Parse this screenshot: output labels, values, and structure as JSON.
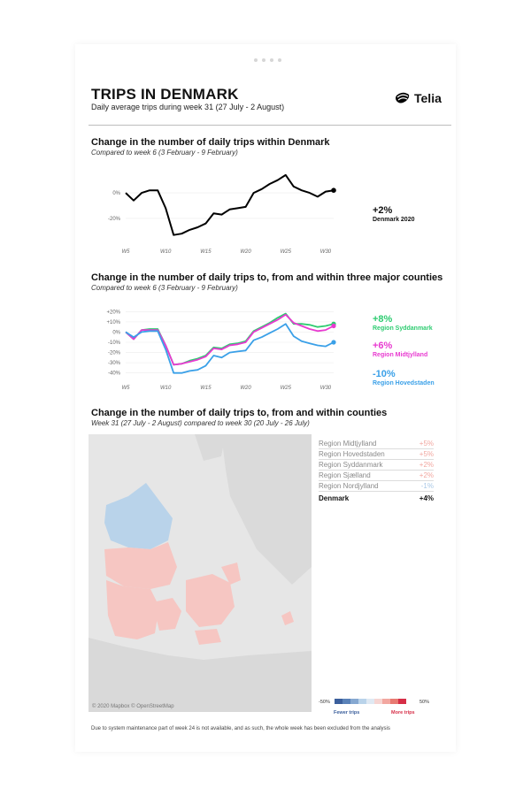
{
  "header": {
    "title": "TRIPS IN DENMARK",
    "subtitle": "Daily average trips during week 31 (27 July - 2 August)",
    "logo_text": "Telia"
  },
  "colors": {
    "denmark": "#000000",
    "syddanmark": "#2ecc71",
    "midtjylland": "#e83ad0",
    "hovedstaden": "#3aa0e8",
    "fewer": "#3b5f9c",
    "more": "#d62e47"
  },
  "section1": {
    "title": "Change in the number of daily trips within Denmark",
    "subtitle": "Compared to week 6 (3 February - 9 February)",
    "value_label": "+2%",
    "series_label": "Denmark 2020"
  },
  "section2": {
    "title": "Change in the number of daily trips to, from and within three major counties",
    "subtitle": "Compared to week 6 (3 February - 9 February)",
    "labels": [
      {
        "value": "+8%",
        "name": "Region Syddanmark"
      },
      {
        "value": "+6%",
        "name": "Region Midtjylland"
      },
      {
        "value": "-10%",
        "name": "Region Hovedstaden"
      }
    ]
  },
  "section3": {
    "title": "Change in the number of daily trips to, from and within counties",
    "subtitle": "Week 31 (27 July - 2 August) compared to week 30 (20 July - 26 July)",
    "map_credit": "© 2020 Mapbox © OpenStreetMap",
    "regions": [
      {
        "name": "Region Midtjylland",
        "value": "+5%"
      },
      {
        "name": "Region Hovedstaden",
        "value": "+5%"
      },
      {
        "name": "Region Syddanmark",
        "value": "+2%"
      },
      {
        "name": "Region Sjælland",
        "value": "+2%"
      },
      {
        "name": "Region Nordjylland",
        "value": "-1%"
      }
    ],
    "total": {
      "name": "Denmark",
      "value": "+4%"
    },
    "legend": {
      "min": "-50%",
      "max": "50%",
      "fewer": "Fewer trips",
      "more": "More trips"
    }
  },
  "footer": "Due to system maintenance part of week 24 is not available, and as such, the whole week has been excluded from the analysis",
  "chart_data": [
    {
      "type": "line",
      "title": "Change in the number of daily trips within Denmark",
      "x": [
        5,
        6,
        7,
        8,
        9,
        10,
        11,
        12,
        13,
        14,
        15,
        16,
        17,
        18,
        19,
        20,
        21,
        22,
        23,
        24,
        25,
        26,
        27,
        28,
        29,
        30,
        31
      ],
      "xticks": [
        5,
        10,
        15,
        20,
        25,
        30
      ],
      "xtick_labels": [
        "W5",
        "W10",
        "W15",
        "W20",
        "W25",
        "W30"
      ],
      "yticks": [
        0,
        -20
      ],
      "ytick_labels": [
        "0%",
        "-20%"
      ],
      "ylim": [
        -36,
        16
      ],
      "series": [
        {
          "name": "Denmark 2020",
          "values": [
            0,
            -6,
            0,
            2,
            2,
            -12,
            -33,
            -32,
            -29,
            -27,
            -24,
            -16,
            -17,
            -13,
            -12,
            -11,
            0,
            3,
            7,
            10,
            14,
            5,
            2,
            0,
            -3,
            1,
            2
          ]
        }
      ],
      "grid": true
    },
    {
      "type": "line",
      "title": "Change in the number of daily trips to, from and within three major counties",
      "x": [
        5,
        6,
        7,
        8,
        9,
        10,
        11,
        12,
        13,
        14,
        15,
        16,
        17,
        18,
        19,
        20,
        21,
        22,
        23,
        24,
        25,
        26,
        27,
        28,
        29,
        30,
        31
      ],
      "xticks": [
        5,
        10,
        15,
        20,
        25,
        30
      ],
      "xtick_labels": [
        "W5",
        "W10",
        "W15",
        "W20",
        "W25",
        "W30"
      ],
      "yticks": [
        20,
        10,
        0,
        -10,
        -20,
        -30,
        -40
      ],
      "ytick_labels": [
        "+20%",
        "+10%",
        "0%",
        "-10%",
        "-20%",
        "-30%",
        "-40%"
      ],
      "ylim": [
        -42,
        22
      ],
      "series": [
        {
          "name": "Region Syddanmark",
          "values": [
            0,
            -7,
            2,
            3,
            3,
            -13,
            -32,
            -31,
            -28,
            -26,
            -23,
            -15,
            -16,
            -12,
            -11,
            -9,
            1,
            5,
            9,
            14,
            18,
            8,
            8,
            7,
            5,
            6,
            8
          ]
        },
        {
          "name": "Region Midtjylland",
          "values": [
            0,
            -7,
            2,
            2,
            2,
            -13,
            -32,
            -31,
            -29,
            -27,
            -24,
            -16,
            -17,
            -13,
            -12,
            -10,
            0,
            4,
            8,
            12,
            17,
            9,
            6,
            3,
            1,
            2,
            6
          ]
        },
        {
          "name": "Region Hovedstaden",
          "values": [
            0,
            -5,
            0,
            1,
            1,
            -17,
            -40,
            -40,
            -38,
            -37,
            -33,
            -23,
            -25,
            -20,
            -19,
            -18,
            -8,
            -5,
            -1,
            3,
            8,
            -4,
            -9,
            -11,
            -13,
            -14,
            -10
          ]
        }
      ],
      "grid": true
    }
  ]
}
